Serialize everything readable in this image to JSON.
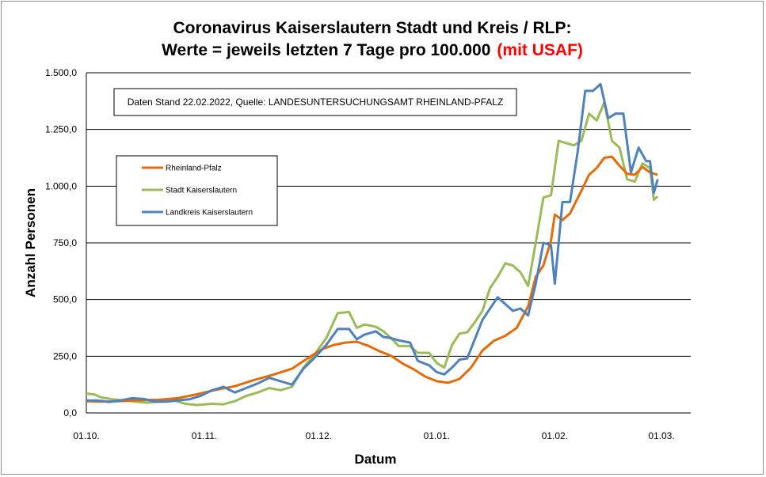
{
  "chart_data": {
    "type": "line",
    "title_line1": "Coronavirus Kaiserslautern Stadt und Kreis / RLP:",
    "title_line2": "Werte = jeweils letzten 7 Tage pro 100.000",
    "title_highlight": "(mit USAF)",
    "xlabel": "Datum",
    "ylabel": "Anzahl Personen",
    "note": "Daten Stand 22.02.2022, Quelle: LANDESUNTERSUCHUNGSAMT RHEINLAND-PFALZ",
    "ylim": [
      0,
      1500
    ],
    "y_ticks": [
      {
        "value": 0,
        "label": "0,0"
      },
      {
        "value": 250,
        "label": "250,0"
      },
      {
        "value": 500,
        "label": "500,0"
      },
      {
        "value": 750,
        "label": "750,0"
      },
      {
        "value": 1000,
        "label": "1.000,0"
      },
      {
        "value": 1250,
        "label": "1.250,0"
      },
      {
        "value": 1500,
        "label": "1.500,0"
      }
    ],
    "x_start": "2021-10-01",
    "x_end": "2022-03-01",
    "x_ticks": [
      {
        "date": "2021-10-01",
        "label": "01.10."
      },
      {
        "date": "2021-11-01",
        "label": "01.11."
      },
      {
        "date": "2021-12-01",
        "label": "01.12."
      },
      {
        "date": "2022-01-01",
        "label": "01.01."
      },
      {
        "date": "2022-02-01",
        "label": "01.02."
      },
      {
        "date": "2022-03-01",
        "label": "01.03."
      }
    ],
    "grid": {
      "horizontal": true,
      "vertical": false
    },
    "legend_position": "left",
    "colors": {
      "rlp": "#e36c09",
      "stadt": "#9bbb59",
      "landkreis": "#4f81bd",
      "title_highlight": "#ff0000"
    },
    "series": [
      {
        "name": "Rheinland-Pfalz",
        "color": "#e36c09",
        "points": [
          [
            "2021-10-01",
            52
          ],
          [
            "2021-10-05",
            50
          ],
          [
            "2021-10-10",
            52
          ],
          [
            "2021-10-15",
            56
          ],
          [
            "2021-10-20",
            58
          ],
          [
            "2021-10-25",
            65
          ],
          [
            "2021-10-30",
            82
          ],
          [
            "2021-11-04",
            102
          ],
          [
            "2021-11-09",
            118
          ],
          [
            "2021-11-14",
            145
          ],
          [
            "2021-11-19",
            168
          ],
          [
            "2021-11-24",
            195
          ],
          [
            "2021-11-28",
            240
          ],
          [
            "2021-12-02",
            282
          ],
          [
            "2021-12-05",
            300
          ],
          [
            "2021-12-08",
            310
          ],
          [
            "2021-12-11",
            314
          ],
          [
            "2021-12-14",
            296
          ],
          [
            "2021-12-17",
            272
          ],
          [
            "2021-12-20",
            252
          ],
          [
            "2021-12-23",
            218
          ],
          [
            "2021-12-26",
            192
          ],
          [
            "2021-12-29",
            160
          ],
          [
            "2022-01-01",
            140
          ],
          [
            "2022-01-04",
            133
          ],
          [
            "2022-01-07",
            150
          ],
          [
            "2022-01-10",
            200
          ],
          [
            "2022-01-13",
            275
          ],
          [
            "2022-01-16",
            318
          ],
          [
            "2022-01-19",
            340
          ],
          [
            "2022-01-22",
            375
          ],
          [
            "2022-01-25",
            470
          ],
          [
            "2022-01-27",
            600
          ],
          [
            "2022-01-29",
            650
          ],
          [
            "2022-01-31",
            760
          ],
          [
            "2022-02-01",
            875
          ],
          [
            "2022-02-03",
            850
          ],
          [
            "2022-02-05",
            880
          ],
          [
            "2022-02-08",
            980
          ],
          [
            "2022-02-10",
            1050
          ],
          [
            "2022-02-12",
            1080
          ],
          [
            "2022-02-14",
            1125
          ],
          [
            "2022-02-16",
            1130
          ],
          [
            "2022-02-18",
            1090
          ],
          [
            "2022-02-20",
            1055
          ],
          [
            "2022-02-22",
            1050
          ],
          [
            "2022-02-24",
            1085
          ],
          [
            "2022-02-26",
            1060
          ],
          [
            "2022-02-28",
            1050
          ]
        ]
      },
      {
        "name": "Stadt Kaiserslautern",
        "color": "#9bbb59",
        "points": [
          [
            "2021-10-01",
            85
          ],
          [
            "2021-10-03",
            82
          ],
          [
            "2021-10-05",
            68
          ],
          [
            "2021-10-08",
            60
          ],
          [
            "2021-10-11",
            55
          ],
          [
            "2021-10-14",
            50
          ],
          [
            "2021-10-17",
            45
          ],
          [
            "2021-10-20",
            50
          ],
          [
            "2021-10-24",
            55
          ],
          [
            "2021-10-27",
            40
          ],
          [
            "2021-10-30",
            35
          ],
          [
            "2021-11-03",
            40
          ],
          [
            "2021-11-06",
            38
          ],
          [
            "2021-11-09",
            52
          ],
          [
            "2021-11-12",
            75
          ],
          [
            "2021-11-15",
            90
          ],
          [
            "2021-11-18",
            110
          ],
          [
            "2021-11-21",
            100
          ],
          [
            "2021-11-24",
            115
          ],
          [
            "2021-11-27",
            200
          ],
          [
            "2021-11-30",
            260
          ],
          [
            "2021-12-03",
            330
          ],
          [
            "2021-12-06",
            440
          ],
          [
            "2021-12-09",
            445
          ],
          [
            "2021-12-11",
            375
          ],
          [
            "2021-12-13",
            390
          ],
          [
            "2021-12-16",
            380
          ],
          [
            "2021-12-18",
            360
          ],
          [
            "2021-12-20",
            330
          ],
          [
            "2021-12-22",
            295
          ],
          [
            "2021-12-25",
            295
          ],
          [
            "2021-12-27",
            265
          ],
          [
            "2021-12-30",
            265
          ],
          [
            "2022-01-01",
            220
          ],
          [
            "2022-01-03",
            200
          ],
          [
            "2022-01-05",
            300
          ],
          [
            "2022-01-07",
            350
          ],
          [
            "2022-01-09",
            355
          ],
          [
            "2022-01-11",
            400
          ],
          [
            "2022-01-13",
            450
          ],
          [
            "2022-01-15",
            550
          ],
          [
            "2022-01-17",
            600
          ],
          [
            "2022-01-19",
            660
          ],
          [
            "2022-01-21",
            650
          ],
          [
            "2022-01-23",
            620
          ],
          [
            "2022-01-25",
            560
          ],
          [
            "2022-01-27",
            750
          ],
          [
            "2022-01-29",
            950
          ],
          [
            "2022-01-31",
            960
          ],
          [
            "2022-02-02",
            1200
          ],
          [
            "2022-02-04",
            1190
          ],
          [
            "2022-02-06",
            1180
          ],
          [
            "2022-02-08",
            1200
          ],
          [
            "2022-02-10",
            1320
          ],
          [
            "2022-02-12",
            1290
          ],
          [
            "2022-02-14",
            1370
          ],
          [
            "2022-02-16",
            1200
          ],
          [
            "2022-02-18",
            1170
          ],
          [
            "2022-02-20",
            1030
          ],
          [
            "2022-02-22",
            1020
          ],
          [
            "2022-02-24",
            1100
          ],
          [
            "2022-02-26",
            1080
          ],
          [
            "2022-02-27",
            940
          ],
          [
            "2022-02-28",
            955
          ]
        ]
      },
      {
        "name": "Landkreis Kaiserslautern",
        "color": "#4f81bd",
        "points": [
          [
            "2021-10-01",
            55
          ],
          [
            "2021-10-04",
            55
          ],
          [
            "2021-10-07",
            48
          ],
          [
            "2021-10-10",
            55
          ],
          [
            "2021-10-13",
            65
          ],
          [
            "2021-10-16",
            62
          ],
          [
            "2021-10-19",
            50
          ],
          [
            "2021-10-22",
            50
          ],
          [
            "2021-10-25",
            55
          ],
          [
            "2021-10-28",
            60
          ],
          [
            "2021-10-31",
            75
          ],
          [
            "2021-11-03",
            100
          ],
          [
            "2021-11-06",
            115
          ],
          [
            "2021-11-09",
            90
          ],
          [
            "2021-11-12",
            110
          ],
          [
            "2021-11-15",
            130
          ],
          [
            "2021-11-18",
            155
          ],
          [
            "2021-11-21",
            140
          ],
          [
            "2021-11-24",
            125
          ],
          [
            "2021-11-27",
            195
          ],
          [
            "2021-11-30",
            245
          ],
          [
            "2021-12-03",
            300
          ],
          [
            "2021-12-06",
            370
          ],
          [
            "2021-12-09",
            370
          ],
          [
            "2021-12-11",
            325
          ],
          [
            "2021-12-13",
            345
          ],
          [
            "2021-12-16",
            360
          ],
          [
            "2021-12-18",
            335
          ],
          [
            "2021-12-20",
            330
          ],
          [
            "2021-12-22",
            320
          ],
          [
            "2021-12-25",
            310
          ],
          [
            "2021-12-27",
            230
          ],
          [
            "2021-12-30",
            210
          ],
          [
            "2022-01-01",
            180
          ],
          [
            "2022-01-03",
            170
          ],
          [
            "2022-01-05",
            200
          ],
          [
            "2022-01-07",
            235
          ],
          [
            "2022-01-09",
            240
          ],
          [
            "2022-01-11",
            325
          ],
          [
            "2022-01-13",
            410
          ],
          [
            "2022-01-15",
            460
          ],
          [
            "2022-01-17",
            510
          ],
          [
            "2022-01-19",
            480
          ],
          [
            "2022-01-21",
            450
          ],
          [
            "2022-01-23",
            460
          ],
          [
            "2022-01-25",
            430
          ],
          [
            "2022-01-27",
            570
          ],
          [
            "2022-01-29",
            750
          ],
          [
            "2022-01-31",
            740
          ],
          [
            "2022-02-01",
            570
          ],
          [
            "2022-02-03",
            930
          ],
          [
            "2022-02-05",
            930
          ],
          [
            "2022-02-07",
            1150
          ],
          [
            "2022-02-09",
            1420
          ],
          [
            "2022-02-11",
            1420
          ],
          [
            "2022-02-13",
            1450
          ],
          [
            "2022-02-15",
            1300
          ],
          [
            "2022-02-17",
            1320
          ],
          [
            "2022-02-19",
            1320
          ],
          [
            "2022-02-21",
            1060
          ],
          [
            "2022-02-23",
            1170
          ],
          [
            "2022-02-25",
            1110
          ],
          [
            "2022-02-26",
            1110
          ],
          [
            "2022-02-27",
            970
          ],
          [
            "2022-02-28",
            1030
          ]
        ]
      }
    ]
  }
}
